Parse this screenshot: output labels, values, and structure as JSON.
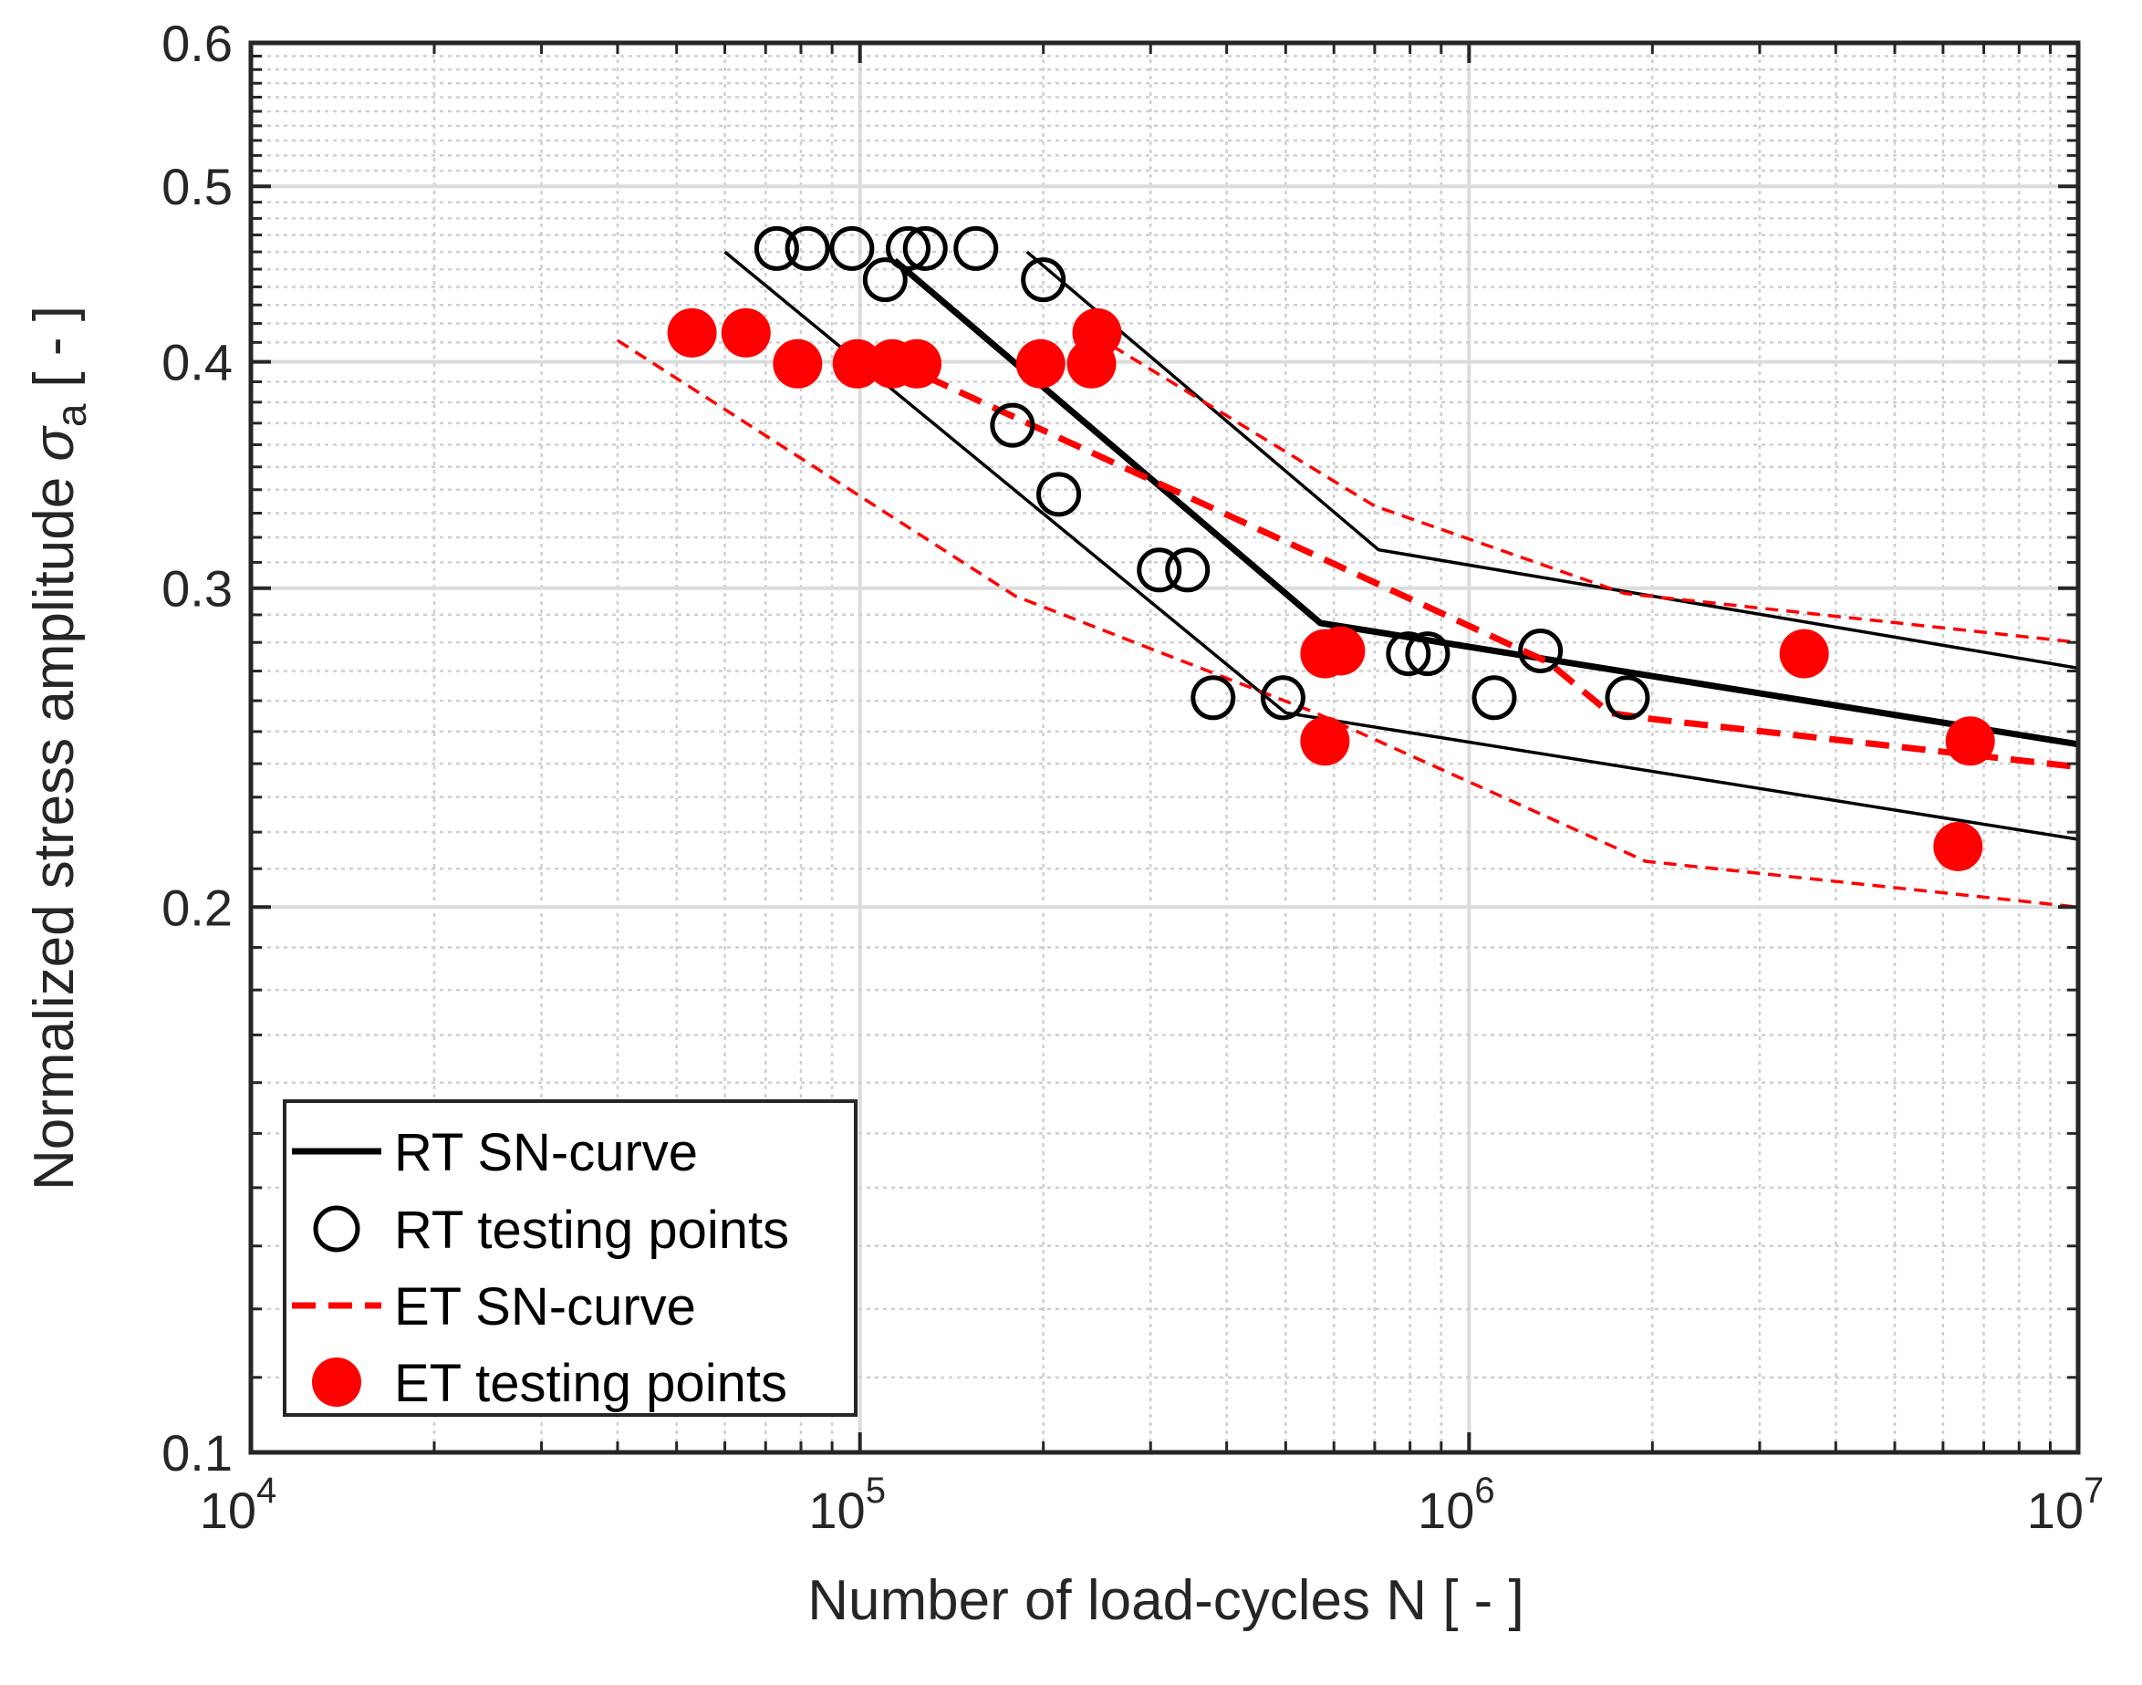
{
  "chart_data": {
    "type": "scatter",
    "xlabel": "Number of load-cycles N [ - ]",
    "ylabel_main": "Normalized stress amplitude",
    "ylabel_symbol": "σ",
    "ylabel_subscript": "a",
    "ylabel_unit": "[ - ]",
    "x_scale": "log",
    "y_scale": "log",
    "xlim": [
      10000,
      10000000
    ],
    "ylim": [
      0.1,
      0.6
    ],
    "x_ticks": [
      {
        "value": 10000,
        "base": "10",
        "exp": "4"
      },
      {
        "value": 100000,
        "base": "10",
        "exp": "5"
      },
      {
        "value": 1000000,
        "base": "10",
        "exp": "6"
      },
      {
        "value": 10000000,
        "base": "10",
        "exp": "7"
      }
    ],
    "y_ticks": [
      {
        "value": 0.1,
        "label": "0.1"
      },
      {
        "value": 0.2,
        "label": "0.2"
      },
      {
        "value": 0.3,
        "label": "0.3"
      },
      {
        "value": 0.4,
        "label": "0.4"
      },
      {
        "value": 0.5,
        "label": "0.5"
      },
      {
        "value": 0.6,
        "label": "0.6"
      }
    ],
    "grid": true,
    "legend_position": "bottom-left",
    "series": [
      {
        "name": "RT SN-curve",
        "kind": "line",
        "color": "#000000",
        "style": "solid-thick",
        "points": [
          [
            114000,
            0.455
          ],
          [
            570000,
            0.287
          ],
          [
            10000000,
            0.246
          ]
        ]
      },
      {
        "name": "RT testing points",
        "kind": "marker",
        "color": "#000000",
        "marker": "open-circle",
        "points": [
          [
            73000,
            0.462
          ],
          [
            82000,
            0.462
          ],
          [
            97000,
            0.462
          ],
          [
            120000,
            0.462
          ],
          [
            128000,
            0.462
          ],
          [
            155000,
            0.462
          ],
          [
            110000,
            0.444
          ],
          [
            200000,
            0.444
          ],
          [
            178000,
            0.369
          ],
          [
            212000,
            0.338
          ],
          [
            310000,
            0.307
          ],
          [
            345000,
            0.307
          ],
          [
            795000,
            0.276
          ],
          [
            855000,
            0.276
          ],
          [
            1310000,
            0.277
          ],
          [
            380000,
            0.261
          ],
          [
            495000,
            0.261
          ],
          [
            1100000,
            0.261
          ],
          [
            1820000,
            0.261
          ]
        ]
      },
      {
        "name": "ET SN-curve",
        "kind": "line",
        "color": "#ff0000",
        "style": "dashed-thick",
        "points": [
          [
            100000,
            0.408
          ],
          [
            1350000,
            0.273
          ],
          [
            1700000,
            0.256
          ],
          [
            2000000,
            0.254
          ],
          [
            10000000,
            0.239
          ]
        ]
      },
      {
        "name": "ET testing points",
        "kind": "marker",
        "color": "#ff0000",
        "marker": "filled-circle",
        "points": [
          [
            53000,
            0.415
          ],
          [
            65000,
            0.415
          ],
          [
            79000,
            0.399
          ],
          [
            99000,
            0.399
          ],
          [
            113000,
            0.399
          ],
          [
            124000,
            0.399
          ],
          [
            198000,
            0.399
          ],
          [
            240000,
            0.399
          ],
          [
            245000,
            0.415
          ],
          [
            580000,
            0.276
          ],
          [
            615000,
            0.277
          ],
          [
            580000,
            0.247
          ],
          [
            3550000,
            0.276
          ],
          [
            6650000,
            0.247
          ],
          [
            6350000,
            0.216
          ]
        ]
      },
      {
        "kind": "line",
        "color": "#000000",
        "style": "solid-thin",
        "points": [
          [
            188000,
            0.46
          ],
          [
            710000,
            0.315
          ],
          [
            10000000,
            0.271
          ]
        ]
      },
      {
        "kind": "line",
        "color": "#000000",
        "style": "solid-thin",
        "points": [
          [
            60000,
            0.46
          ],
          [
            500000,
            0.256
          ],
          [
            10000000,
            0.218
          ]
        ]
      },
      {
        "kind": "line",
        "color": "#ff0000",
        "style": "dashed-thin",
        "points": [
          [
            260000,
            0.408
          ],
          [
            700000,
            0.333
          ],
          [
            1800000,
            0.298
          ],
          [
            10000000,
            0.28
          ]
        ]
      },
      {
        "kind": "line",
        "color": "#ff0000",
        "style": "dashed-thin",
        "points": [
          [
            40000,
            0.411
          ],
          [
            180000,
            0.297
          ],
          [
            560000,
            0.256
          ],
          [
            1950000,
            0.212
          ],
          [
            10000000,
            0.2
          ]
        ]
      }
    ]
  }
}
